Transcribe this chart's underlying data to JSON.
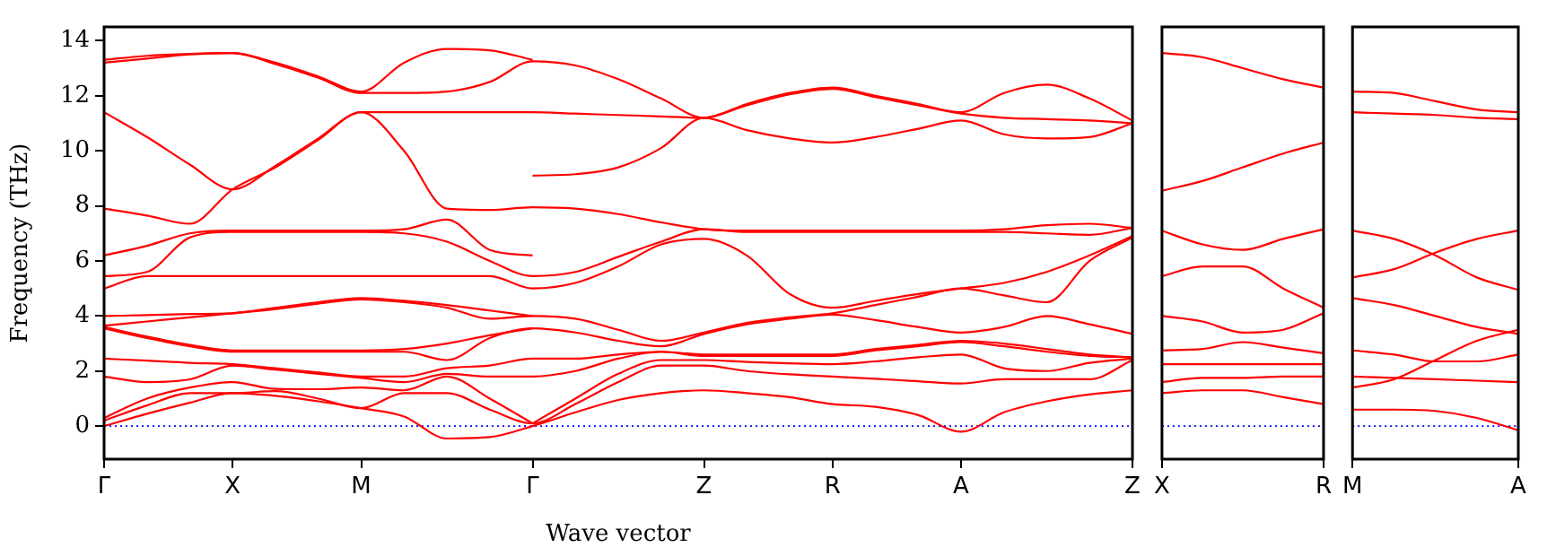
{
  "chart_data": [
    {
      "type": "line",
      "xlabel": "Wave vector",
      "ylabel": "Frequency (THz)",
      "categories": [
        "Γ",
        null,
        null,
        "X",
        null,
        null,
        "M",
        null,
        null,
        null,
        "Γ",
        null,
        null,
        null,
        "Z",
        null,
        null,
        "R",
        null,
        null,
        "A",
        null,
        null,
        null,
        "Z"
      ],
      "ylim": [
        -1.2,
        14.5
      ],
      "yticks": [
        0,
        2,
        4,
        6,
        8,
        10,
        12,
        14
      ],
      "grid": false,
      "legend": false,
      "marker": "none",
      "line_style": "solid",
      "ref_lines": [
        {
          "axis": "y",
          "value": 0,
          "color": "#0000ff",
          "line_style": "dotted"
        }
      ],
      "series": [
        {
          "color": "#ff0000",
          "values": [
            0,
            0.45,
            0.85,
            1.2,
            1.1,
            0.9,
            0.65,
            0.35,
            -0.45,
            -0.4,
            0,
            0.5,
            0.95,
            1.2,
            1.3,
            1.2,
            1.05,
            0.8,
            0.7,
            0.4,
            -0.2,
            0.5,
            0.9,
            1.15,
            1.3
          ]
        },
        {
          "color": "#ff0000",
          "values": [
            0.2,
            0.75,
            1.2,
            1.2,
            1.27,
            1.0,
            0.65,
            1.2,
            1.2,
            0.6,
            0.1,
            0.8,
            1.6,
            2.2,
            2.2,
            2.0,
            1.88,
            1.8,
            1.72,
            1.63,
            1.55,
            1.7,
            1.7,
            1.7,
            2.4
          ]
        },
        {
          "color": "#ff0000",
          "values": [
            0.3,
            1.0,
            1.4,
            1.6,
            1.35,
            1.34,
            1.4,
            1.3,
            1.8,
            1.0,
            0.1,
            null,
            null,
            null,
            null,
            null,
            null,
            null,
            null,
            null,
            null,
            null,
            null,
            null,
            null
          ]
        },
        {
          "color": "#ff0000",
          "values": [
            null,
            null,
            null,
            null,
            null,
            null,
            null,
            null,
            null,
            null,
            0.1,
            1.0,
            1.9,
            2.4,
            2.4,
            2.33,
            2.28,
            2.25,
            2.35,
            2.5,
            2.6,
            2.1,
            2.0,
            2.3,
            2.45
          ]
        },
        {
          "color": "#ff0000",
          "values": [
            1.8,
            1.6,
            1.7,
            2.2,
            2.05,
            1.9,
            1.75,
            1.6,
            1.9,
            1.8,
            1.8,
            2.0,
            2.45,
            2.7,
            2.55,
            2.55,
            2.55,
            2.55,
            2.75,
            2.9,
            3.05,
            2.9,
            2.7,
            2.55,
            2.5
          ]
        },
        {
          "color": "#ff0000",
          "values": [
            2.45,
            2.38,
            2.3,
            2.25,
            2.1,
            1.95,
            1.8,
            1.8,
            2.1,
            2.2,
            2.45,
            2.45,
            2.6,
            2.7,
            2.6,
            2.6,
            2.6,
            2.6,
            2.8,
            2.95,
            3.1,
            3.0,
            2.8,
            2.6,
            2.5
          ]
        },
        {
          "color": "#ff0000",
          "values": [
            3.55,
            3.2,
            2.9,
            2.7,
            2.7,
            2.7,
            2.7,
            2.7,
            2.4,
            3.2,
            3.55,
            3.4,
            3.1,
            2.9,
            3.35,
            3.7,
            3.9,
            4.05,
            3.85,
            3.6,
            3.4,
            3.6,
            4.0,
            3.7,
            3.35
          ]
        },
        {
          "color": "#ff0000",
          "values": [
            3.6,
            3.25,
            2.95,
            2.75,
            2.75,
            2.75,
            2.75,
            2.8,
            3.0,
            3.3,
            3.55,
            null,
            null,
            null,
            null,
            null,
            null,
            null,
            null,
            null,
            null,
            null,
            null,
            null,
            null
          ]
        },
        {
          "color": "#ff0000",
          "values": [
            3.65,
            3.8,
            3.95,
            4.1,
            4.25,
            4.45,
            4.6,
            4.5,
            4.3,
            3.9,
            4.0,
            3.9,
            3.5,
            3.1,
            3.4,
            3.75,
            3.95,
            4.1,
            4.4,
            4.7,
            5.0,
            4.75,
            4.5,
            6.0,
            6.85
          ]
        },
        {
          "color": "#ff0000",
          "values": [
            4.0,
            4.03,
            4.07,
            4.1,
            4.3,
            4.5,
            4.65,
            4.55,
            4.4,
            4.2,
            4.0,
            null,
            null,
            null,
            null,
            null,
            null,
            null,
            null,
            null,
            null,
            null,
            null,
            null,
            null
          ]
        },
        {
          "color": "#ff0000",
          "values": [
            5.0,
            5.45,
            5.45,
            5.45,
            5.45,
            5.45,
            5.45,
            5.45,
            5.45,
            5.45,
            5.0,
            5.2,
            5.8,
            6.6,
            6.8,
            6.2,
            4.8,
            4.3,
            4.55,
            4.8,
            5.0,
            5.2,
            5.6,
            6.2,
            6.9
          ]
        },
        {
          "color": "#ff0000",
          "values": [
            5.45,
            5.6,
            6.85,
            7.05,
            7.05,
            7.05,
            7.05,
            7.0,
            6.7,
            6.0,
            5.45,
            5.6,
            6.15,
            6.7,
            7.15,
            7.05,
            7.05,
            7.05,
            7.05,
            7.05,
            7.05,
            7.05,
            7.0,
            6.95,
            7.2
          ]
        },
        {
          "color": "#ff0000",
          "values": [
            6.2,
            6.55,
            7.0,
            7.1,
            7.1,
            7.1,
            7.1,
            7.15,
            7.5,
            6.4,
            6.2,
            null,
            null,
            null,
            null,
            null,
            null,
            null,
            null,
            null,
            null,
            null,
            null,
            null,
            null
          ]
        },
        {
          "color": "#ff0000",
          "values": [
            7.9,
            7.65,
            7.35,
            8.6,
            9.4,
            10.4,
            11.4,
            10.0,
            7.9,
            7.85,
            7.95,
            7.9,
            7.7,
            7.4,
            7.15,
            7.1,
            7.1,
            7.1,
            7.1,
            7.1,
            7.1,
            7.15,
            7.3,
            7.35,
            7.2
          ]
        },
        {
          "color": "#ff0000",
          "values": [
            null,
            null,
            null,
            null,
            null,
            null,
            null,
            null,
            null,
            null,
            9.1,
            9.15,
            9.4,
            10.1,
            11.2,
            10.75,
            10.45,
            10.3,
            10.5,
            10.8,
            11.1,
            10.6,
            10.45,
            10.5,
            11.0
          ]
        },
        {
          "color": "#ff0000",
          "values": [
            11.4,
            10.5,
            9.5,
            8.6,
            9.45,
            10.45,
            11.4,
            11.4,
            11.4,
            11.4,
            11.4,
            11.35,
            11.3,
            11.25,
            11.2,
            11.65,
            12.05,
            12.25,
            11.95,
            11.65,
            11.35,
            11.2,
            11.15,
            11.1,
            11.0
          ]
        },
        {
          "color": "#ff0000",
          "values": [
            13.2,
            13.35,
            13.5,
            13.55,
            13.15,
            12.65,
            12.1,
            12.1,
            12.15,
            12.5,
            13.25,
            13.1,
            12.6,
            11.9,
            11.2,
            11.7,
            12.1,
            12.3,
            12.0,
            11.7,
            11.4,
            12.1,
            12.4,
            11.9,
            11.1
          ]
        },
        {
          "color": "#ff0000",
          "values": [
            13.3,
            13.45,
            13.52,
            13.55,
            13.2,
            12.7,
            12.15,
            13.2,
            13.7,
            13.65,
            13.3,
            null,
            null,
            null,
            null,
            null,
            null,
            null,
            null,
            null,
            null,
            null,
            null,
            null,
            null
          ]
        }
      ]
    },
    {
      "type": "line",
      "categories": [
        "X",
        null,
        null,
        null,
        "R"
      ],
      "ylim": [
        -1.2,
        14.5
      ],
      "yticks": [
        0,
        2,
        4,
        6,
        8,
        10,
        12,
        14
      ],
      "tick_labels": "x",
      "grid": false,
      "legend": false,
      "marker": "none",
      "line_style": "solid",
      "ref_lines": [
        {
          "axis": "y",
          "value": 0,
          "color": "#0000ff",
          "line_style": "dotted"
        }
      ],
      "series": [
        {
          "color": "#ff0000",
          "values": [
            13.55,
            13.4,
            13.0,
            12.6,
            12.3
          ]
        },
        {
          "color": "#ff0000",
          "values": [
            8.55,
            8.9,
            9.4,
            9.9,
            10.3
          ]
        },
        {
          "color": "#ff0000",
          "values": [
            7.1,
            6.6,
            6.4,
            6.8,
            7.15
          ]
        },
        {
          "color": "#ff0000",
          "values": [
            5.45,
            5.8,
            5.8,
            5.0,
            4.3
          ]
        },
        {
          "color": "#ff0000",
          "values": [
            4.0,
            3.8,
            3.4,
            3.5,
            4.1
          ]
        },
        {
          "color": "#ff0000",
          "values": [
            2.75,
            2.8,
            3.05,
            2.85,
            2.65
          ]
        },
        {
          "color": "#ff0000",
          "values": [
            2.25,
            2.25,
            2.25,
            2.25,
            2.25
          ]
        },
        {
          "color": "#ff0000",
          "values": [
            1.6,
            1.75,
            1.75,
            1.8,
            1.8
          ]
        },
        {
          "color": "#ff0000",
          "values": [
            1.2,
            1.3,
            1.3,
            1.05,
            0.8
          ]
        }
      ]
    },
    {
      "type": "line",
      "categories": [
        "M",
        null,
        null,
        null,
        "A"
      ],
      "ylim": [
        -1.2,
        14.5
      ],
      "yticks": [
        0,
        2,
        4,
        6,
        8,
        10,
        12,
        14
      ],
      "tick_labels": "x",
      "grid": false,
      "legend": false,
      "marker": "none",
      "line_style": "solid",
      "ref_lines": [
        {
          "axis": "y",
          "value": 0,
          "color": "#0000ff",
          "line_style": "dotted"
        }
      ],
      "series": [
        {
          "color": "#ff0000",
          "values": [
            12.15,
            12.1,
            11.8,
            11.5,
            11.4
          ]
        },
        {
          "color": "#ff0000",
          "values": [
            11.4,
            11.35,
            11.3,
            11.2,
            11.15
          ]
        },
        {
          "color": "#ff0000",
          "values": [
            7.1,
            6.8,
            6.2,
            5.4,
            4.95
          ]
        },
        {
          "color": "#ff0000",
          "values": [
            5.4,
            5.7,
            6.3,
            6.8,
            7.1
          ]
        },
        {
          "color": "#ff0000",
          "values": [
            4.65,
            4.4,
            4.0,
            3.6,
            3.35
          ]
        },
        {
          "color": "#ff0000",
          "values": [
            2.75,
            2.6,
            2.35,
            2.35,
            2.6
          ]
        },
        {
          "color": "#ff0000",
          "values": [
            1.8,
            1.75,
            1.7,
            1.65,
            1.6
          ]
        },
        {
          "color": "#ff0000",
          "values": [
            1.4,
            1.7,
            2.4,
            3.1,
            3.5
          ]
        },
        {
          "color": "#ff0000",
          "values": [
            0.6,
            0.6,
            0.55,
            0.3,
            -0.15
          ]
        }
      ]
    }
  ]
}
